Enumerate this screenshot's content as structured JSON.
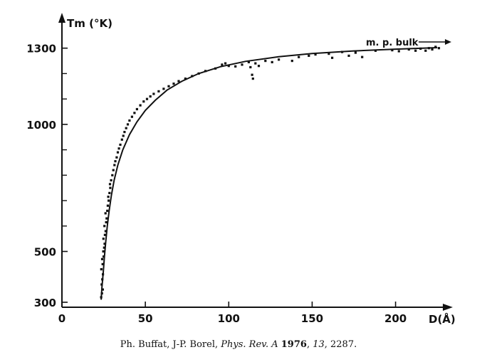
{
  "chart_data": {
    "type": "scatter",
    "ylabel": "Tm (°K)",
    "xlabel": "D(Å)",
    "xlim": [
      0,
      230
    ],
    "ylim": [
      300,
      1400
    ],
    "x_ticks": [
      0,
      50,
      100,
      150,
      200
    ],
    "y_major_ticks": [
      300,
      500,
      1000,
      1300
    ],
    "y_minor_ticks": [
      600,
      700,
      800,
      900,
      1100,
      1200
    ],
    "annotation": "m. p. bulk",
    "bulk_melting_point": 1337,
    "series": [
      {
        "style": "points",
        "points": [
          [
            23.5,
            320
          ],
          [
            24,
            335
          ],
          [
            24.5,
            350
          ],
          [
            23.8,
            370
          ],
          [
            24.2,
            390
          ],
          [
            24.6,
            410
          ],
          [
            23.6,
            430
          ],
          [
            24.4,
            450
          ],
          [
            24.1,
            470
          ],
          [
            25,
            480
          ],
          [
            24.8,
            500
          ],
          [
            25.3,
            515
          ],
          [
            25.6,
            530
          ],
          [
            24.9,
            550
          ],
          [
            25.8,
            565
          ],
          [
            26.2,
            580
          ],
          [
            25.5,
            600
          ],
          [
            26.5,
            615
          ],
          [
            26.8,
            630
          ],
          [
            26.1,
            650
          ],
          [
            27.2,
            660
          ],
          [
            27.5,
            680
          ],
          [
            28,
            700
          ],
          [
            27.8,
            715
          ],
          [
            28.5,
            730
          ],
          [
            29,
            750
          ],
          [
            28.8,
            765
          ],
          [
            29.5,
            780
          ],
          [
            30.2,
            800
          ],
          [
            30.8,
            820
          ],
          [
            31.5,
            840
          ],
          [
            32,
            855
          ],
          [
            32.8,
            870
          ],
          [
            33.5,
            890
          ],
          [
            34.2,
            905
          ],
          [
            35,
            920
          ],
          [
            36,
            940
          ],
          [
            36.8,
            955
          ],
          [
            37.5,
            970
          ],
          [
            38.5,
            985
          ],
          [
            39.5,
            1000
          ],
          [
            40.5,
            1015
          ],
          [
            42,
            1030
          ],
          [
            43.5,
            1045
          ],
          [
            45,
            1060
          ],
          [
            47,
            1075
          ],
          [
            49,
            1090
          ],
          [
            51,
            1100
          ],
          [
            53,
            1110
          ],
          [
            55,
            1120
          ],
          [
            58,
            1130
          ],
          [
            61,
            1140
          ],
          [
            64,
            1150
          ],
          [
            67,
            1160
          ],
          [
            70,
            1170
          ],
          [
            74,
            1180
          ],
          [
            78,
            1190
          ],
          [
            82,
            1200
          ],
          [
            86,
            1210
          ],
          [
            92,
            1220
          ],
          [
            96,
            1235
          ],
          [
            98,
            1240
          ],
          [
            100,
            1230
          ],
          [
            104,
            1228
          ],
          [
            108,
            1235
          ],
          [
            112,
            1245
          ],
          [
            113,
            1225
          ],
          [
            114,
            1195
          ],
          [
            114.5,
            1180
          ],
          [
            116,
            1240
          ],
          [
            118,
            1230
          ],
          [
            122,
            1250
          ],
          [
            126,
            1245
          ],
          [
            130,
            1255
          ],
          [
            138,
            1250
          ],
          [
            142,
            1265
          ],
          [
            148,
            1270
          ],
          [
            152,
            1275
          ],
          [
            160,
            1278
          ],
          [
            162,
            1262
          ],
          [
            168,
            1285
          ],
          [
            172,
            1270
          ],
          [
            176,
            1282
          ],
          [
            180,
            1265
          ],
          [
            188,
            1290
          ],
          [
            198,
            1292
          ],
          [
            202,
            1288
          ],
          [
            208,
            1295
          ],
          [
            212,
            1290
          ],
          [
            215,
            1298
          ],
          [
            218,
            1290
          ],
          [
            220,
            1300
          ],
          [
            222,
            1295
          ],
          [
            224,
            1305
          ],
          [
            226,
            1300
          ]
        ]
      },
      {
        "style": "line",
        "points": [
          [
            23.5,
            310
          ],
          [
            24,
            360
          ],
          [
            24.8,
            420
          ],
          [
            25.5,
            480
          ],
          [
            26.3,
            540
          ],
          [
            27.2,
            600
          ],
          [
            28.3,
            660
          ],
          [
            29.6,
            720
          ],
          [
            31.3,
            780
          ],
          [
            33.5,
            840
          ],
          [
            36.5,
            900
          ],
          [
            40.5,
            960
          ],
          [
            45,
            1010
          ],
          [
            50,
            1055
          ],
          [
            56,
            1095
          ],
          [
            63,
            1135
          ],
          [
            72,
            1170
          ],
          [
            82,
            1200
          ],
          [
            95,
            1227
          ],
          [
            110,
            1248
          ],
          [
            130,
            1266
          ],
          [
            150,
            1279
          ],
          [
            175,
            1289
          ],
          [
            200,
            1296
          ],
          [
            225,
            1302
          ]
        ]
      }
    ]
  },
  "citation": {
    "authors": "Ph. Buffat, J-P. Borel,",
    "journal": "Phys. Rev. A",
    "year": "1976",
    "volume": "13",
    "pages": "2287."
  }
}
